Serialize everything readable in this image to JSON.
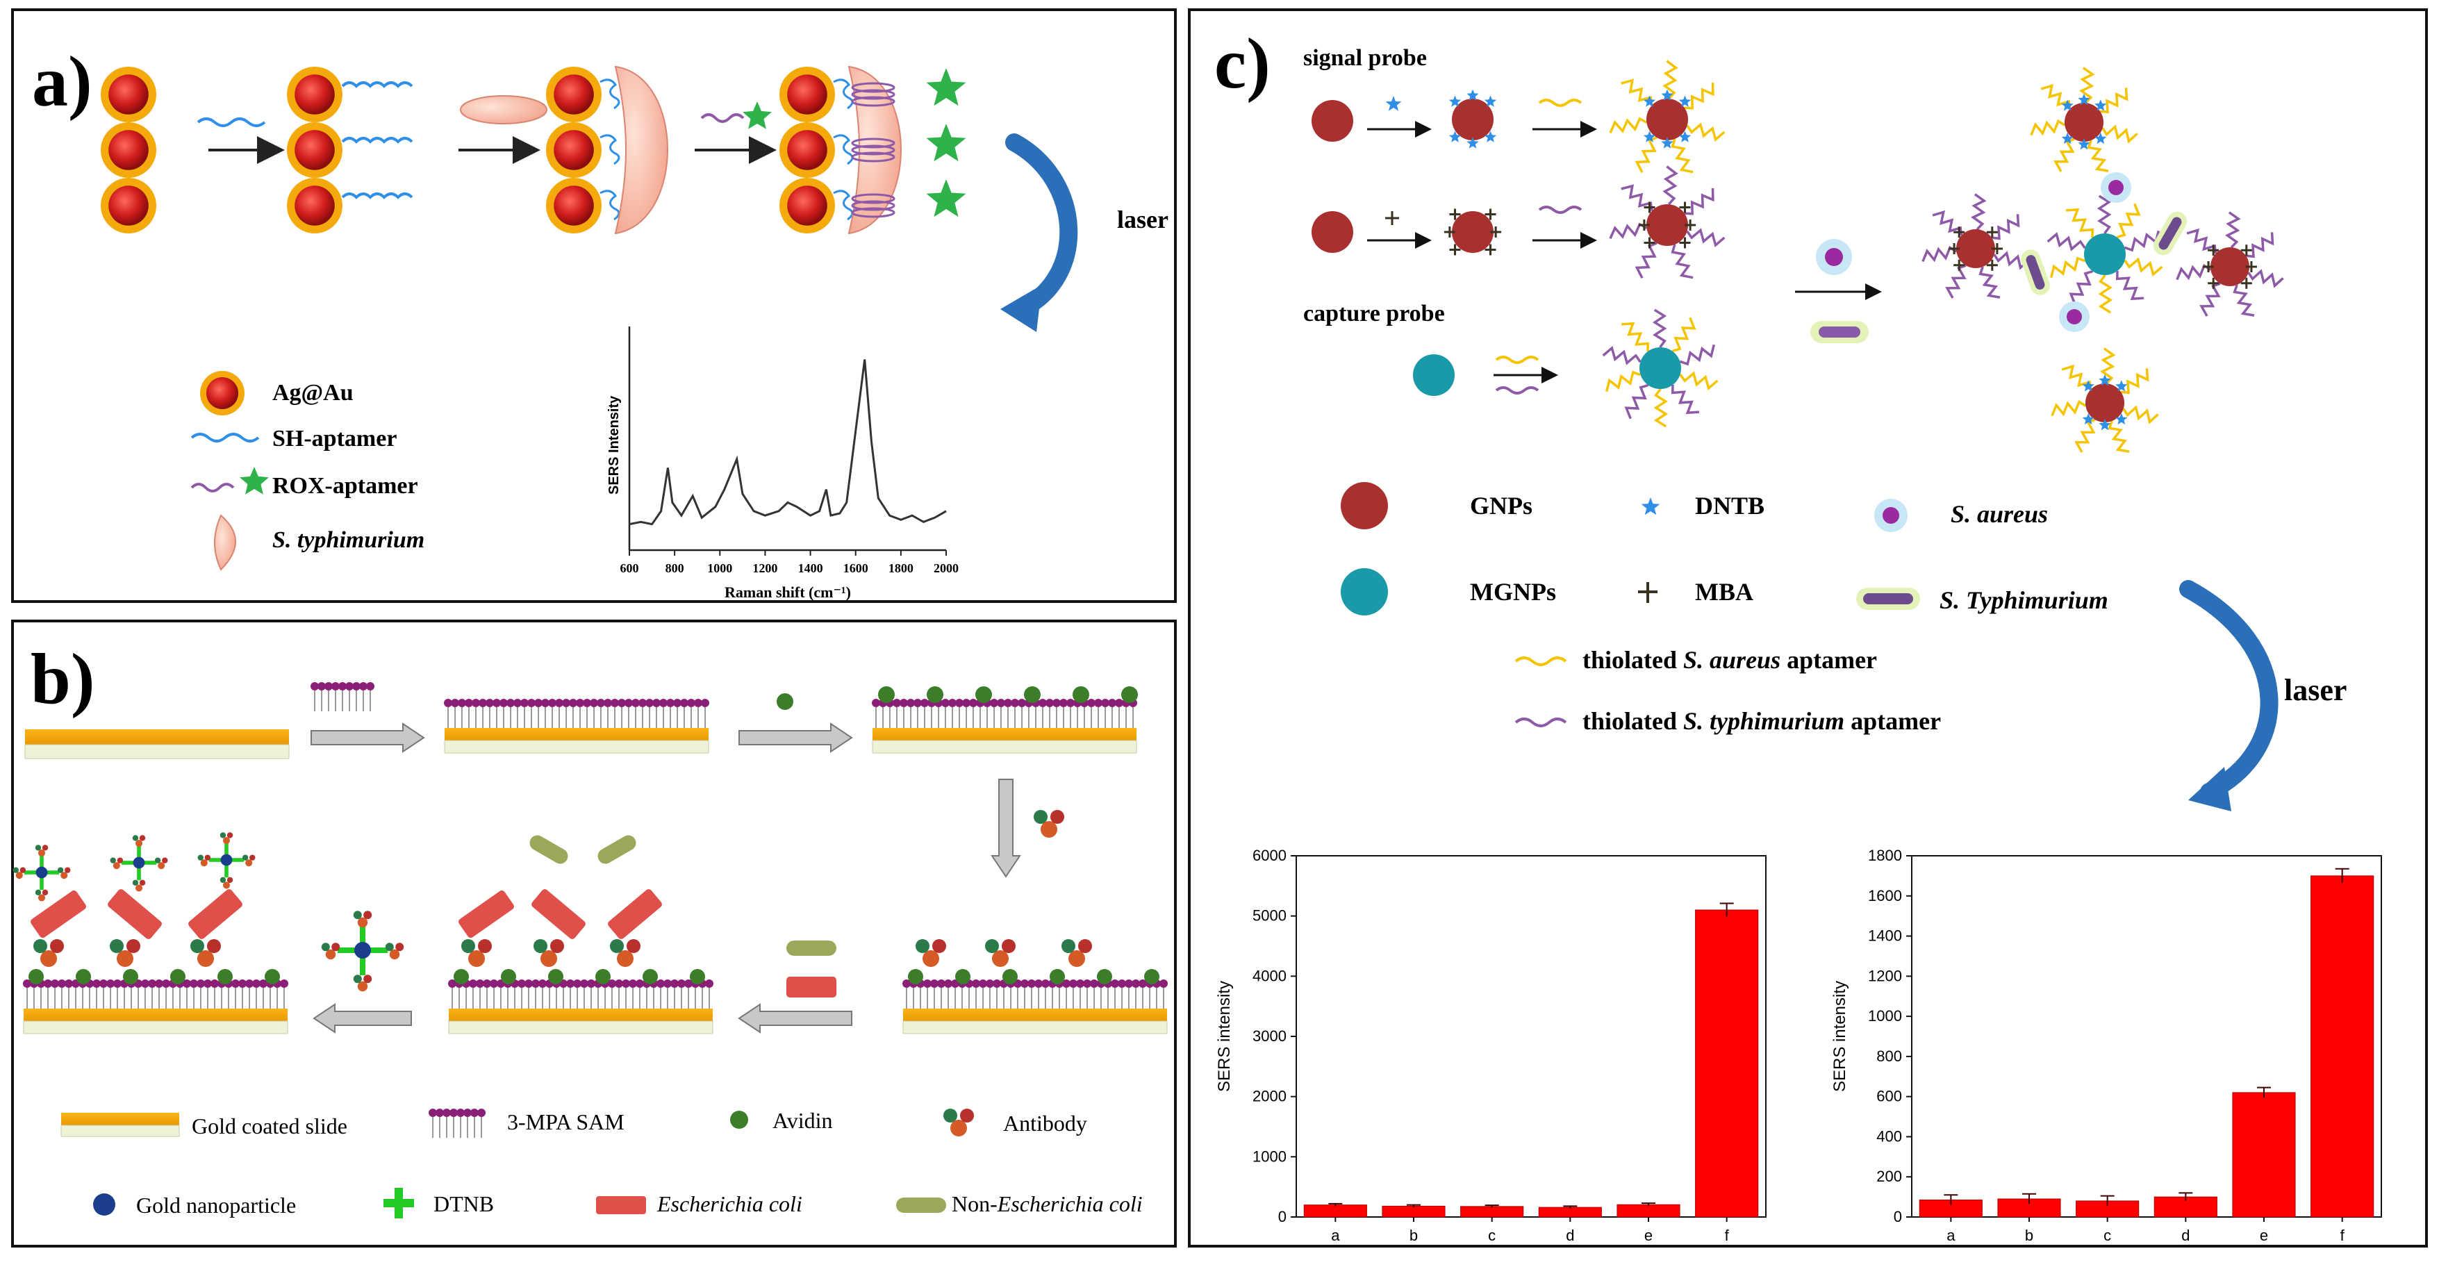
{
  "colors": {
    "gold": "#f4a90d",
    "red_core": "#c21818",
    "aptamer_blue": "#2f8fe6",
    "aptamer_purple": "#8e5aa8",
    "aptamer_yellow": "#f5c400",
    "rox_green": "#2db34a",
    "bacteria_pink": "#f4b3a0",
    "sam_purple": "#8a1f78",
    "avidin_green": "#3c7d2a",
    "ecoli_red": "#e0504a",
    "non_ecoli_olive": "#9aa85a",
    "dtnb_green": "#22cc22",
    "gnp_red": "#a8302e",
    "mgnp_teal": "#1a9aa8",
    "arrow_blue": "#2a6fb8",
    "bar_red": "#ff0000"
  },
  "panel_a": {
    "label": "a)",
    "laser_label": "laser",
    "legend": {
      "agau": "Ag@Au",
      "sh_aptamer": "SH-aptamer",
      "rox_aptamer": "ROX-aptamer",
      "s_typhimurium": "S. typhimurium"
    },
    "spectrum": {
      "ylabel": "SERS Intensity",
      "xlabel": "Raman shift (cm⁻¹)",
      "x_ticks": [
        "600",
        "800",
        "1000",
        "1200",
        "1400",
        "1600",
        "1800",
        "2000"
      ],
      "x_range": [
        600,
        2000
      ],
      "y_range": [
        0,
        100
      ],
      "points": [
        [
          600,
          12
        ],
        [
          650,
          13
        ],
        [
          700,
          12
        ],
        [
          740,
          18
        ],
        [
          770,
          38
        ],
        [
          790,
          22
        ],
        [
          830,
          16
        ],
        [
          880,
          25
        ],
        [
          920,
          15
        ],
        [
          980,
          20
        ],
        [
          1020,
          28
        ],
        [
          1075,
          42
        ],
        [
          1100,
          26
        ],
        [
          1150,
          18
        ],
        [
          1200,
          16
        ],
        [
          1260,
          18
        ],
        [
          1300,
          22
        ],
        [
          1340,
          20
        ],
        [
          1400,
          16
        ],
        [
          1440,
          18
        ],
        [
          1470,
          28
        ],
        [
          1490,
          16
        ],
        [
          1530,
          17
        ],
        [
          1560,
          22
        ],
        [
          1600,
          55
        ],
        [
          1640,
          88
        ],
        [
          1670,
          50
        ],
        [
          1700,
          24
        ],
        [
          1750,
          16
        ],
        [
          1800,
          14
        ],
        [
          1850,
          16
        ],
        [
          1900,
          13
        ],
        [
          1950,
          15
        ],
        [
          2000,
          18
        ]
      ]
    }
  },
  "panel_b": {
    "label": "b)",
    "legend": {
      "gold_slide": "Gold coated slide",
      "mpa_sam": "3-MPA SAM",
      "avidin": "Avidin",
      "antibody": "Antibody",
      "gold_np": "Gold nanoparticle",
      "dtnb": "DTNB",
      "ecoli": "Escherichia coli",
      "non_prefix": "Non-",
      "non_ecoli": "Escherichia coli"
    }
  },
  "panel_c": {
    "label": "c)",
    "signal_probe": "signal probe",
    "capture_probe": "capture probe",
    "laser_label": "laser",
    "legend": {
      "gnps": "GNPs",
      "dntb": "DNTB",
      "s_aureus": "S. aureus",
      "mgnps": "MGNPs",
      "mba": "MBA",
      "s_typhimurium": "S. Typhimurium",
      "aureus_apt_prefix": "thiolated ",
      "aureus_apt_species": "S. aureus",
      "aureus_apt_suffix": " aptamer",
      "typh_apt_prefix": "thiolated ",
      "typh_apt_species": "S. typhimurium",
      "typh_apt_suffix": " aptamer"
    }
  },
  "chart_data": [
    {
      "type": "bar",
      "title": "",
      "xlabel": "",
      "ylabel": "SERS intensity",
      "categories": [
        "a",
        "b",
        "c",
        "d",
        "e",
        "f"
      ],
      "values": [
        200,
        180,
        175,
        160,
        205,
        5100
      ],
      "errors": [
        20,
        20,
        20,
        20,
        25,
        110
      ],
      "ylim": [
        0,
        6000
      ],
      "yticks": [
        "0",
        "1000",
        "2000",
        "3000",
        "4000",
        "5000",
        "6000"
      ]
    },
    {
      "type": "bar",
      "title": "",
      "xlabel": "",
      "ylabel": "SERS intensity",
      "categories": [
        "a",
        "b",
        "c",
        "d",
        "e",
        "f"
      ],
      "values": [
        85,
        90,
        80,
        100,
        620,
        1700
      ],
      "errors": [
        25,
        25,
        25,
        20,
        25,
        35
      ],
      "ylim": [
        0,
        1800
      ],
      "yticks": [
        "0",
        "200",
        "400",
        "600",
        "800",
        "1000",
        "1200",
        "1400",
        "1600",
        "1800"
      ]
    }
  ]
}
